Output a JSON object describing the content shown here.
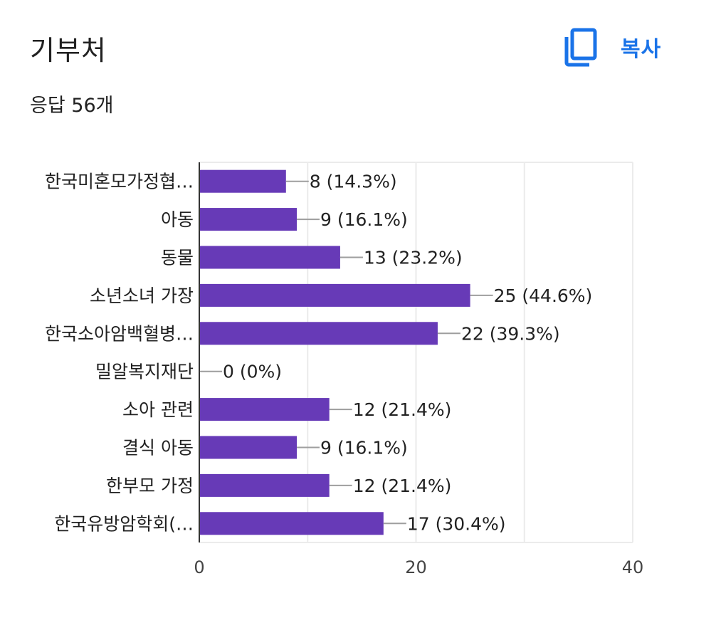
{
  "header": {
    "title": "기부처",
    "copy_label": "복사",
    "response_count": "응답 56개"
  },
  "colors": {
    "bar": "#673ab7",
    "accent": "#1a73e8",
    "grid": "#ebebeb",
    "axis": "#333333",
    "leader": "#9e9e9e"
  },
  "icons": {
    "copy": "copy-icon"
  },
  "chart_data": {
    "type": "bar",
    "orientation": "horizontal",
    "categories": [
      "한국미혼모가정협…",
      "아동",
      "동물",
      "소년소녀 가장",
      "한국소아암백혈병…",
      "밀알복지재단",
      "소아 관련",
      "결식 아동",
      "한부모 가정",
      "한국유방암학회(…"
    ],
    "values": [
      8,
      9,
      13,
      25,
      22,
      0,
      12,
      9,
      12,
      17
    ],
    "value_labels": [
      "8 (14.3%)",
      "9 (16.1%)",
      "13 (23.2%)",
      "25 (44.6%)",
      "22 (39.3%)",
      "0 (0%)",
      "12 (21.4%)",
      "9 (16.1%)",
      "12 (21.4%)",
      "17 (30.4%)"
    ],
    "xlim": [
      0,
      40
    ],
    "xticks": [
      0,
      20,
      40
    ],
    "grid_step": 10,
    "grid": true
  }
}
